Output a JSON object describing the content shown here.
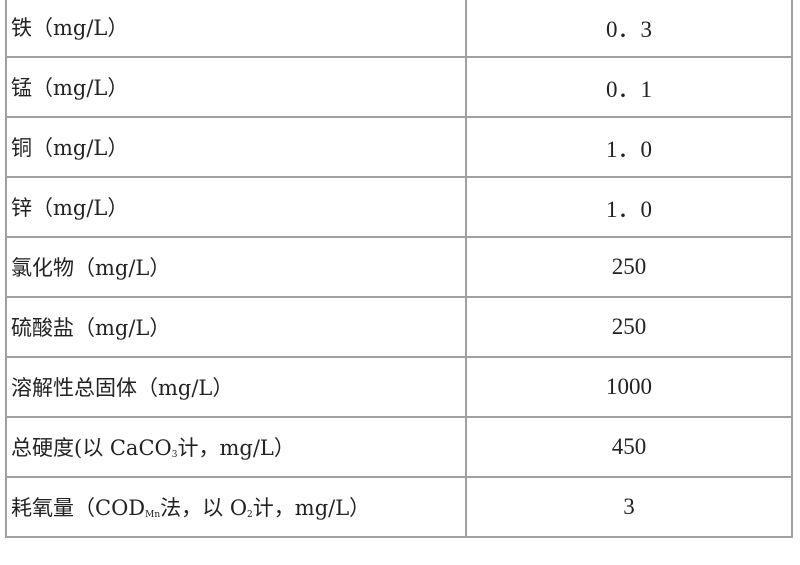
{
  "rows": [
    {
      "name": "铁（mg/L）",
      "value": "0．3"
    },
    {
      "name": "锰（mg/L）",
      "value": "0．1"
    },
    {
      "name": "铜（mg/L）",
      "value": "1．0"
    },
    {
      "name": "锌（mg/L）",
      "value": "1．0"
    },
    {
      "name": "氯化物（mg/L）",
      "value": "250"
    },
    {
      "name": "硫酸盐（mg/L）",
      "value": "250"
    },
    {
      "name": "溶解性总固体（mg/L）",
      "value": "1000"
    },
    {
      "name_pre": "总硬度(以 CaCO",
      "name_sub": "3",
      "name_post": "计，mg/L）",
      "value": "450"
    },
    {
      "name_pre": "耗氧量（COD",
      "name_sub": "Mn",
      "name_mid": "法，以 O",
      "name_sub2": "2",
      "name_post": "计，mg/L）",
      "value": "3"
    }
  ]
}
